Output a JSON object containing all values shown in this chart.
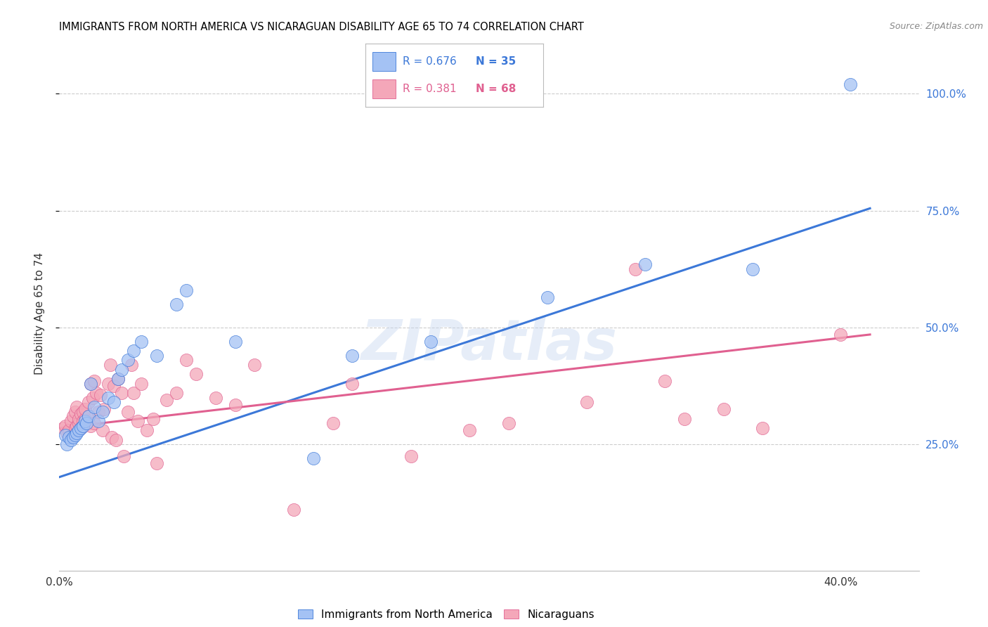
{
  "title": "IMMIGRANTS FROM NORTH AMERICA VS NICARAGUAN DISABILITY AGE 65 TO 74 CORRELATION CHART",
  "source": "Source: ZipAtlas.com",
  "ylabel": "Disability Age 65 to 74",
  "series1_color": "#a4c2f4",
  "series2_color": "#f4a7b9",
  "line1_color": "#3c78d8",
  "line2_color": "#e06090",
  "blue_line_x0": 0.0,
  "blue_line_x1": 0.415,
  "blue_line_y0": 0.18,
  "blue_line_y1": 0.755,
  "pink_line_x0": 0.0,
  "pink_line_x1": 0.415,
  "pink_line_y0": 0.285,
  "pink_line_y1": 0.485,
  "xlim": [
    0.0,
    0.44
  ],
  "ylim": [
    -0.02,
    1.08
  ],
  "yticks": [
    0.25,
    0.5,
    0.75,
    1.0
  ],
  "ytick_labels": [
    "25.0%",
    "50.0%",
    "75.0%",
    "100.0%"
  ],
  "xticks": [
    0.0,
    0.1,
    0.2,
    0.3,
    0.4
  ],
  "xtick_labels": [
    "0.0%",
    "",
    "",
    "",
    "40.0%"
  ],
  "R1": "0.676",
  "N1": "35",
  "R2": "0.381",
  "N2": "68",
  "blue_x": [
    0.003,
    0.004,
    0.005,
    0.006,
    0.007,
    0.008,
    0.009,
    0.01,
    0.011,
    0.012,
    0.013,
    0.014,
    0.015,
    0.016,
    0.018,
    0.02,
    0.022,
    0.025,
    0.028,
    0.03,
    0.032,
    0.035,
    0.038,
    0.042,
    0.05,
    0.06,
    0.065,
    0.09,
    0.13,
    0.15,
    0.19,
    0.25,
    0.3,
    0.355,
    0.405
  ],
  "blue_y": [
    0.27,
    0.25,
    0.265,
    0.26,
    0.265,
    0.27,
    0.275,
    0.28,
    0.285,
    0.29,
    0.3,
    0.295,
    0.31,
    0.38,
    0.33,
    0.3,
    0.32,
    0.35,
    0.34,
    0.39,
    0.41,
    0.43,
    0.45,
    0.47,
    0.44,
    0.55,
    0.58,
    0.47,
    0.22,
    0.44,
    0.47,
    0.565,
    0.635,
    0.625,
    1.02
  ],
  "pink_x": [
    0.002,
    0.003,
    0.004,
    0.005,
    0.006,
    0.007,
    0.007,
    0.008,
    0.008,
    0.009,
    0.009,
    0.01,
    0.01,
    0.011,
    0.011,
    0.012,
    0.012,
    0.013,
    0.013,
    0.014,
    0.015,
    0.015,
    0.016,
    0.016,
    0.017,
    0.018,
    0.018,
    0.019,
    0.02,
    0.021,
    0.022,
    0.023,
    0.025,
    0.026,
    0.027,
    0.028,
    0.029,
    0.03,
    0.032,
    0.033,
    0.035,
    0.037,
    0.038,
    0.04,
    0.042,
    0.045,
    0.048,
    0.05,
    0.055,
    0.06,
    0.065,
    0.07,
    0.08,
    0.09,
    0.1,
    0.12,
    0.14,
    0.15,
    0.18,
    0.21,
    0.23,
    0.27,
    0.295,
    0.31,
    0.32,
    0.34,
    0.36,
    0.4
  ],
  "pink_y": [
    0.285,
    0.29,
    0.275,
    0.28,
    0.3,
    0.27,
    0.31,
    0.285,
    0.32,
    0.29,
    0.33,
    0.295,
    0.305,
    0.285,
    0.315,
    0.3,
    0.32,
    0.305,
    0.325,
    0.295,
    0.31,
    0.34,
    0.29,
    0.38,
    0.35,
    0.295,
    0.385,
    0.36,
    0.32,
    0.355,
    0.28,
    0.325,
    0.38,
    0.42,
    0.265,
    0.375,
    0.26,
    0.39,
    0.36,
    0.225,
    0.32,
    0.42,
    0.36,
    0.3,
    0.38,
    0.28,
    0.305,
    0.21,
    0.345,
    0.36,
    0.43,
    0.4,
    0.35,
    0.335,
    0.42,
    0.11,
    0.295,
    0.38,
    0.225,
    0.28,
    0.295,
    0.34,
    0.625,
    0.385,
    0.305,
    0.325,
    0.285,
    0.485
  ]
}
